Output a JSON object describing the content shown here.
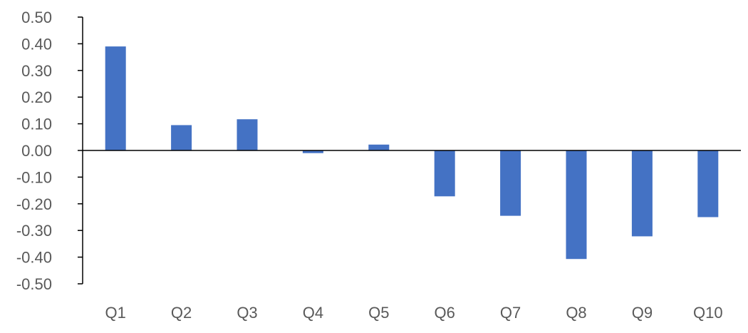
{
  "chart_data": {
    "type": "bar",
    "title": "",
    "xlabel": "",
    "ylabel": "",
    "categories": [
      "Q1",
      "Q2",
      "Q3",
      "Q4",
      "Q5",
      "Q6",
      "Q7",
      "Q8",
      "Q9",
      "Q10"
    ],
    "values": [
      0.39,
      0.095,
      0.117,
      -0.01,
      0.022,
      -0.172,
      -0.245,
      -0.407,
      -0.322,
      -0.25
    ],
    "ylim": [
      -0.5,
      0.5
    ],
    "ytick_values": [
      0.5,
      0.4,
      0.3,
      0.2,
      0.1,
      0.0,
      -0.1,
      -0.2,
      -0.3,
      -0.4,
      -0.5
    ],
    "ytick_labels": [
      "0.50",
      "0.40",
      "0.30",
      "0.20",
      "0.10",
      "0.00",
      "-0.10",
      "-0.20",
      "-0.30",
      "-0.40",
      "-0.50"
    ],
    "grid": false,
    "legend": "none",
    "bar_color": "#4472C4",
    "axis_color": "#000000",
    "tick_label_color": "#595959"
  }
}
